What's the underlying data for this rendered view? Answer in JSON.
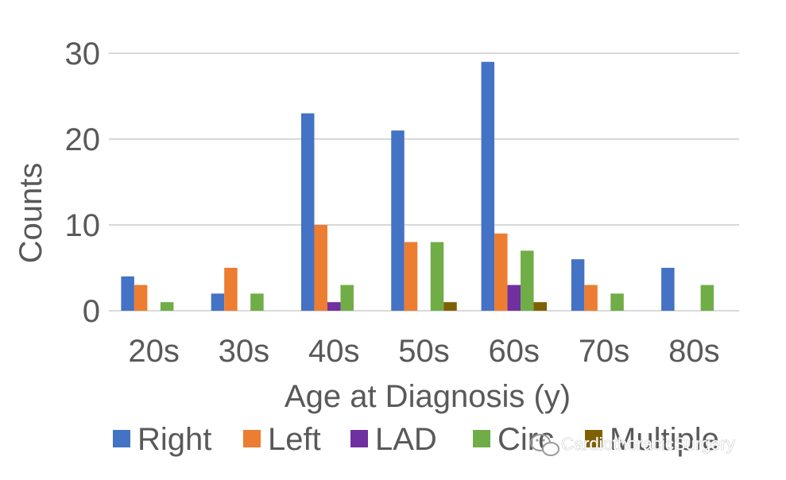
{
  "chart_data": {
    "type": "bar",
    "title": "",
    "xlabel": "Age at Diagnosis (y)",
    "ylabel": "Counts",
    "ylim": [
      0,
      30
    ],
    "yticks": [
      0,
      10,
      20,
      30
    ],
    "grid": true,
    "legend_position": "bottom",
    "categories": [
      "20s",
      "30s",
      "40s",
      "50s",
      "60s",
      "70s",
      "80s"
    ],
    "series": [
      {
        "name": "Right",
        "color": "#4472C4",
        "values": [
          4,
          2,
          23,
          21,
          29,
          6,
          5
        ]
      },
      {
        "name": "Left",
        "color": "#ED7D31",
        "values": [
          3,
          5,
          10,
          8,
          9,
          3,
          0
        ]
      },
      {
        "name": "LAD",
        "color": "#7030A0",
        "values": [
          0,
          0,
          1,
          0,
          3,
          0,
          0
        ]
      },
      {
        "name": "Circ",
        "color": "#70AD47",
        "values": [
          1,
          2,
          3,
          8,
          7,
          2,
          3
        ]
      },
      {
        "name": "Multiple",
        "color": "#7F6000",
        "values": [
          0,
          0,
          0,
          1,
          1,
          0,
          0
        ]
      }
    ]
  },
  "watermark": {
    "text": "CardiothoracicSurgery",
    "icon": "wechat-icon"
  }
}
